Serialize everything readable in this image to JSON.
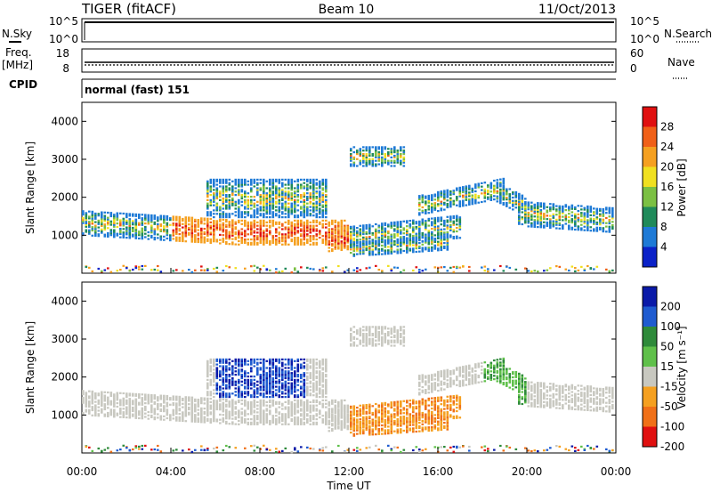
{
  "header": {
    "station": "TIGER (fitACF)",
    "beam": "Beam 10",
    "date": "11/Oct/2013"
  },
  "top_panels": {
    "nsky_label": "N.Sky",
    "nsky_ticks": [
      "10^5",
      "10^0"
    ],
    "nsearch_label": "N.Search",
    "nsearch_ticks": [
      "10^5",
      "10^0"
    ],
    "freq_label": "Freq.",
    "freq_unit": "[MHz]",
    "freq_ticks": [
      "18",
      "8"
    ],
    "nave_label": "Nave",
    "nave_ticks": [
      "60",
      "0"
    ],
    "cpid_label": "CPID",
    "cpid_value": "normal (fast) 151"
  },
  "chart_data": [
    {
      "type": "heatmap",
      "name": "power",
      "ylabel": "Slant Range [km]",
      "ylim": [
        0,
        4500
      ],
      "yticks": [
        "1000",
        "2000",
        "3000",
        "4000"
      ],
      "xlim": [
        0,
        24
      ],
      "colorbar_label": "Power [dB]",
      "colorbar_ticks": [
        "4",
        "8",
        "12",
        "16",
        "20",
        "24",
        "28"
      ],
      "colorbar_range": [
        0,
        32
      ],
      "colors": [
        "#0b22c8",
        "#1e7ad6",
        "#1f8a5a",
        "#7bc043",
        "#f0e020",
        "#f5a020",
        "#f06018",
        "#e01010"
      ]
    },
    {
      "type": "heatmap",
      "name": "velocity",
      "ylabel": "Slant Range [km]",
      "ylim": [
        0,
        4500
      ],
      "yticks": [
        "1000",
        "2000",
        "3000",
        "4000"
      ],
      "xlim": [
        0,
        24
      ],
      "xticks": [
        "00:00",
        "04:00",
        "08:00",
        "12:00",
        "16:00",
        "20:00",
        "00:00"
      ],
      "xlabel": "Time UT",
      "colorbar_label": "Velocity [m s⁻¹]",
      "colorbar_ticks": [
        "200",
        "100",
        "50",
        "15",
        "-15",
        "-50",
        "-100",
        "-200"
      ],
      "colors": [
        "#0a1aa8",
        "#1e5bd0",
        "#2e8a3a",
        "#5fc04a",
        "#c8c8c0",
        "#f5a020",
        "#f07018",
        "#e01010"
      ]
    }
  ]
}
